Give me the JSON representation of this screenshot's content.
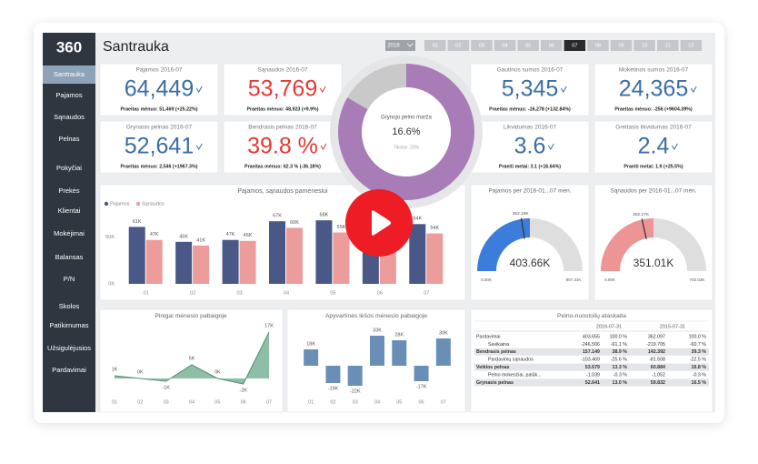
{
  "sidebar": {
    "logo": "360",
    "active": "Santrauka",
    "items": [
      "Santrauka",
      "Pajamos",
      "Sąnaudos",
      "Pelnas",
      "Pokyčiai",
      "Prekės",
      "Klientai",
      "Mokėjimai",
      "Balansas",
      "P/N",
      "Skolos",
      "Patikimumas",
      "Užsigulėjusios",
      "Pardavimai"
    ]
  },
  "header": {
    "title": "Santrauka",
    "year": "2016",
    "active_month": "07",
    "months": [
      "01",
      "02",
      "03",
      "04",
      "05",
      "06",
      "07",
      "08",
      "09",
      "10",
      "11",
      "12"
    ]
  },
  "kpis": [
    {
      "title": "Pajamos 2016-07",
      "value": "64,449",
      "sub": "Praeitas mėnuo: 51,469 (+25.22%)",
      "color": "#3a6ea5"
    },
    {
      "title": "Sąnaudos 2016-07",
      "value": "53,769",
      "sub": "Praeitas mėnuo: 48,923 (+9.9%)",
      "color": "#e53935"
    },
    {
      "title": "Gautinos sumos 2016-07",
      "value": "5,345",
      "sub": "Praeitas mėnuo: -16,278 (+132.84%)",
      "color": "#3a6ea5"
    },
    {
      "title": "Mokėtinos sumos 2016-07",
      "value": "24,365",
      "sub": "Praeitas mėnuo: -256 (+9604.39%)",
      "color": "#3a6ea5"
    },
    {
      "title": "Grynasis pelnas 2016-07",
      "value": "52,641",
      "sub": "Praeitas mėnuo: 2,546 (+1967.3%)",
      "color": "#3a6ea5"
    },
    {
      "title": "Bendrasis pelnas 2016-07",
      "value": "39.8 %",
      "sub": "Praeitas mėnuo: 62.3 % (-36.18%)",
      "color": "#e53935"
    },
    {
      "title": "Likvidumas 2016-07",
      "value": "3.6",
      "sub": "Praeiti metai: 3.1 (+16.64%)",
      "color": "#3a6ea5"
    },
    {
      "title": "Greitasis likvidumas 2016-07",
      "value": "2.4",
      "sub": "Praeiti metai: 1.9 (+25.5%)",
      "color": "#3a6ea5"
    }
  ],
  "chart_data": [
    {
      "type": "donut",
      "title": "Grynojo pelno marža",
      "value": 16.6,
      "value_label": "16.6%",
      "target_label": "Tikslas: 20%",
      "color": "#c9c9c9",
      "rest_color": "#a87cb7"
    },
    {
      "type": "bar",
      "title": "Pajamos, sąnaudos pamėnesiui",
      "categories": [
        "01",
        "02",
        "03",
        "04",
        "05",
        "06",
        "07"
      ],
      "series": [
        {
          "name": "Pajamos",
          "color": "#4a5888",
          "values": [
            61,
            45,
            47,
            67,
            68,
            51,
            64
          ],
          "value_labels": [
            "61K",
            "45K",
            "47K",
            "67K",
            "68K",
            null,
            "64K"
          ]
        },
        {
          "name": "Sąnaudos",
          "color": "#ec9d9b",
          "values": [
            47,
            41,
            46,
            60,
            55,
            49,
            54
          ],
          "value_labels": [
            "47K",
            "41K",
            "46K",
            "60K",
            "55K",
            null,
            "54K"
          ]
        }
      ],
      "ylim": [
        0,
        75
      ],
      "yticks": [
        {
          "value": 0,
          "label": "0K"
        },
        {
          "value": 50,
          "label": "50K"
        }
      ]
    },
    {
      "type": "gauge",
      "title": "Pajamos per 2016-01...07 mėn.",
      "value": 403.66,
      "value_label": "403.66K",
      "target": 362.19,
      "target_label": "362.19K",
      "range": [
        {
          "value": 0,
          "label": "0.00K"
        },
        {
          "value": 807.31,
          "label": "807.31K"
        }
      ],
      "color": "#3c7ddb"
    },
    {
      "type": "gauge",
      "title": "Sąnaudos per 2016-01...07 mėn.",
      "value": 351.01,
      "value_label": "351.01K",
      "target": 302.27,
      "target_label": "302.27K",
      "range": [
        {
          "value": 0,
          "label": "0.00K"
        },
        {
          "value": 702.03,
          "label": "702.03K"
        }
      ],
      "color": "#ec9594"
    },
    {
      "type": "area",
      "title": "Pinigai mėnesio pabaigoje",
      "categories": [
        "01",
        "02",
        "03",
        "04",
        "05",
        "06",
        "07"
      ],
      "values": [
        1,
        0,
        -1,
        5,
        0,
        -2,
        17
      ],
      "value_labels": [
        "1K",
        "0K",
        "-1K",
        "5K",
        "0K",
        "-2K",
        "17K"
      ],
      "ylim": [
        -4,
        18
      ],
      "color": "#6aa88a"
    },
    {
      "type": "bar",
      "title": "Apyvartinės lėšos mėnesio pabaigoje",
      "categories": [
        "01",
        "02",
        "03",
        "04",
        "05",
        "06",
        "07"
      ],
      "values": [
        18,
        -19,
        -22,
        33,
        28,
        -17,
        30
      ],
      "value_labels": [
        "18K",
        "-19K",
        "-22K",
        "33K",
        "28K",
        "-17K",
        "30K"
      ],
      "ylim": [
        -30,
        40
      ],
      "color": "#6a8fb7"
    }
  ],
  "table": {
    "title": "Pelno-nuostolių ataskaita",
    "columns": [
      "2016-07-31",
      "2015-07-31"
    ],
    "rows": [
      {
        "cells": [
          "Pardavimai",
          "403.655",
          "100.0 %",
          "362.097",
          "100.0 %"
        ],
        "bold": false,
        "indent": false
      },
      {
        "cells": [
          "Savikaina",
          "-246.506",
          "-61.1 %",
          "-219.705",
          "-60.7 %"
        ],
        "bold": false,
        "indent": true
      },
      {
        "cells": [
          "Bendrasis pelnas",
          "157.149",
          "38.9 %",
          "142.392",
          "39.3 %"
        ],
        "bold": true,
        "indent": false
      },
      {
        "cells": [
          "Pardavimų sąnaudos",
          "-103.469",
          "-25.6 %",
          "-81.508",
          "-22.5 %"
        ],
        "bold": false,
        "indent": true
      },
      {
        "cells": [
          "Veiklos pelnas",
          "53.679",
          "13.3 %",
          "60.884",
          "16.8 %"
        ],
        "bold": true,
        "indent": false
      },
      {
        "cells": [
          "Pelno mokesčiai, palūk...",
          "-1.039",
          "-0.3 %",
          "-1.052",
          "-0.3 %"
        ],
        "bold": false,
        "indent": true
      },
      {
        "cells": [
          "Grynasis pelnas",
          "52.641",
          "13.0 %",
          "59.832",
          "16.5 %"
        ],
        "bold": true,
        "indent": false
      }
    ]
  }
}
